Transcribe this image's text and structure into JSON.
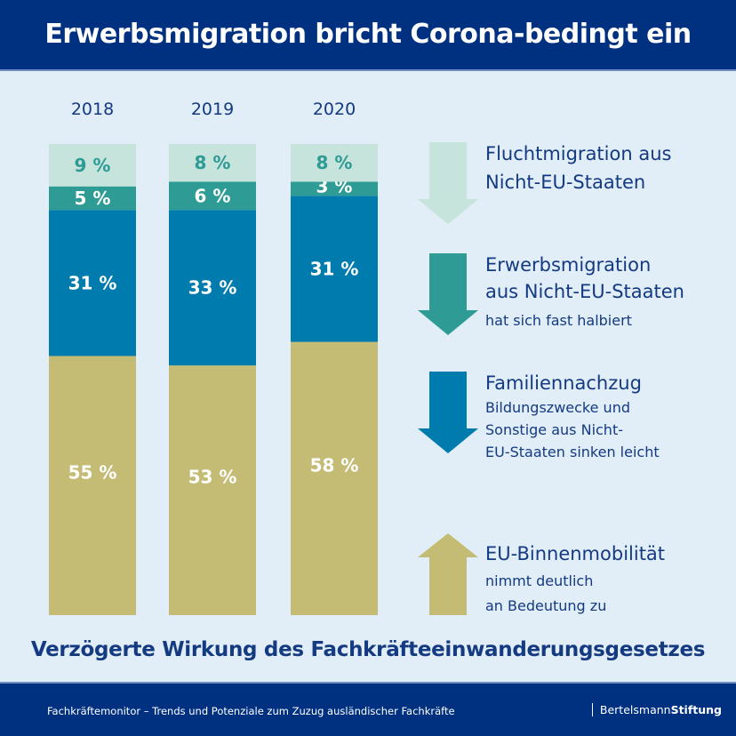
{
  "header": {
    "title": "Erwerbsmigration bricht Corona-bedingt ein"
  },
  "colors": {
    "header_bg": "#003180",
    "background": "#e1edf7",
    "flucht": "#c6e3dc",
    "erwerb": "#2f9b95",
    "familie": "#007bad",
    "eu": "#c4bb74",
    "text_dark": "#143a82"
  },
  "chart_data": {
    "type": "bar",
    "stacked": true,
    "categories": [
      "2018",
      "2019",
      "2020"
    ],
    "ylim": [
      0,
      100
    ],
    "series": [
      {
        "name": "EU-Binnenmobilität",
        "color": "#c4bb74",
        "values": [
          55,
          53,
          58
        ],
        "labels": [
          "55 %",
          "53 %",
          "58 %"
        ],
        "label_color": "#ffffff"
      },
      {
        "name": "Familiennachzug",
        "color": "#007bad",
        "values": [
          31,
          33,
          31
        ],
        "labels": [
          "31 %",
          "33 %",
          "31 %"
        ],
        "label_color": "#ffffff"
      },
      {
        "name": "Erwerbsmigration aus Nicht-EU-Staaten",
        "color": "#2f9b95",
        "values": [
          5,
          6,
          3
        ],
        "labels": [
          "5 %",
          "6 %",
          "3 %"
        ],
        "label_color": "#ffffff"
      },
      {
        "name": "Fluchtmigration aus Nicht-EU-Staaten",
        "color": "#c6e3dc",
        "values": [
          9,
          8,
          8
        ],
        "labels": [
          "9 %",
          "8 %",
          "8 %"
        ],
        "label_color": "#2f9b95"
      }
    ],
    "title": "Erwerbsmigration bricht Corona-bedingt ein",
    "xlabel": "",
    "ylabel": "",
    "grid": false
  },
  "legend": [
    {
      "direction": "down",
      "color": "#c6e3dc",
      "title_lines": [
        "Fluchtmigration aus",
        "Nicht-EU-Staaten"
      ],
      "sub_lines": []
    },
    {
      "direction": "down",
      "color": "#2f9b95",
      "title_lines": [
        "Erwerbsmigration",
        "aus Nicht-EU-Staaten"
      ],
      "sub_lines": [
        "hat sich fast halbiert"
      ]
    },
    {
      "direction": "down",
      "color": "#007bad",
      "title_lines": [
        "Familiennachzug"
      ],
      "sub_lines": [
        "Bildungszwecke und",
        "Sonstige aus Nicht-",
        "EU-Staaten sinken leicht"
      ]
    },
    {
      "direction": "up",
      "color": "#c4bb74",
      "title_lines": [
        "EU-Binnenmobilität"
      ],
      "sub_lines": [
        "nimmt deutlich",
        "an Bedeutung zu"
      ]
    }
  ],
  "subtitle": "Verzögerte Wirkung des Fachkräfteeinwanderungsgesetzes",
  "footer": {
    "text": "Fachkräftemonitor – Trends und Potenziale zum Zuzug ausländischer Fachkräfte",
    "brand_light": "Bertelsmann",
    "brand_bold": "Stiftung"
  }
}
